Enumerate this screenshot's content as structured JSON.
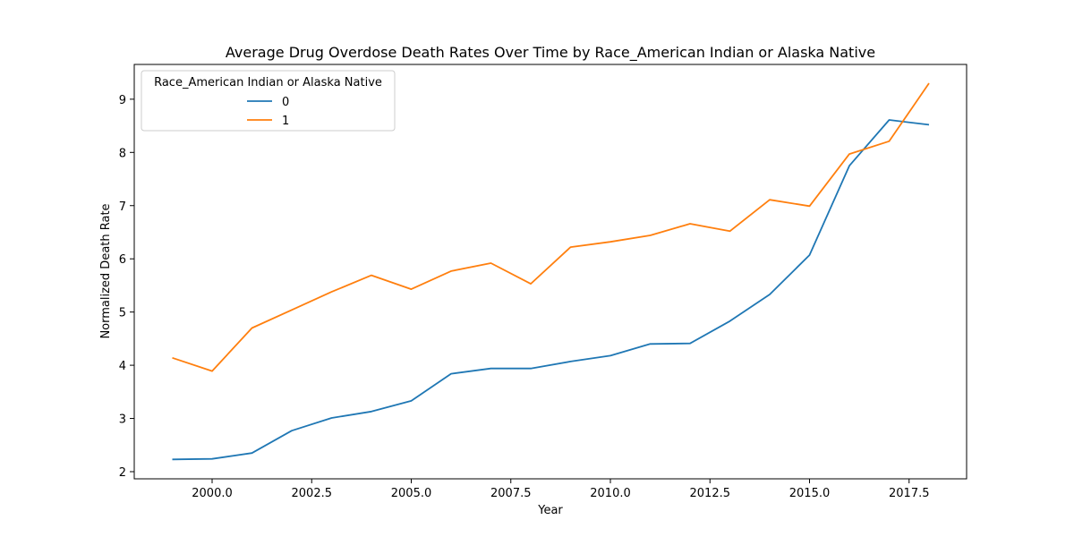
{
  "chart_data": {
    "type": "line",
    "title": "Average Drug Overdose Death Rates Over Time by Race_American Indian or Alaska Native",
    "xlabel": "Year",
    "ylabel": "Normalized Death Rate",
    "xlim": [
      1999,
      2018
    ],
    "ylim": [
      2,
      9.3
    ],
    "x": [
      1999,
      2000,
      2001,
      2002,
      2003,
      2004,
      2005,
      2006,
      2007,
      2008,
      2009,
      2010,
      2011,
      2012,
      2013,
      2014,
      2015,
      2016,
      2017,
      2018
    ],
    "x_ticks": [
      "2000.0",
      "2002.5",
      "2005.0",
      "2007.5",
      "2010.0",
      "2012.5",
      "2015.0",
      "2017.5"
    ],
    "y_ticks": [
      "2",
      "3",
      "4",
      "5",
      "6",
      "7",
      "8",
      "9"
    ],
    "series": [
      {
        "name": "0",
        "color": "#1f77b4",
        "values": [
          2.23,
          2.24,
          2.35,
          2.77,
          3.01,
          3.13,
          3.33,
          3.84,
          3.94,
          3.94,
          4.07,
          4.18,
          4.4,
          4.41,
          4.83,
          5.33,
          6.07,
          7.75,
          8.61,
          8.52
        ]
      },
      {
        "name": "1",
        "color": "#ff7f0e",
        "values": [
          4.14,
          3.89,
          4.7,
          5.04,
          5.38,
          5.69,
          5.43,
          5.77,
          5.92,
          5.53,
          6.22,
          6.32,
          6.44,
          6.66,
          6.52,
          7.11,
          6.99,
          7.97,
          8.21,
          9.3
        ]
      }
    ],
    "legend": {
      "title": "Race_American Indian or Alaska Native",
      "position": "upper-left"
    },
    "grid": false
  }
}
